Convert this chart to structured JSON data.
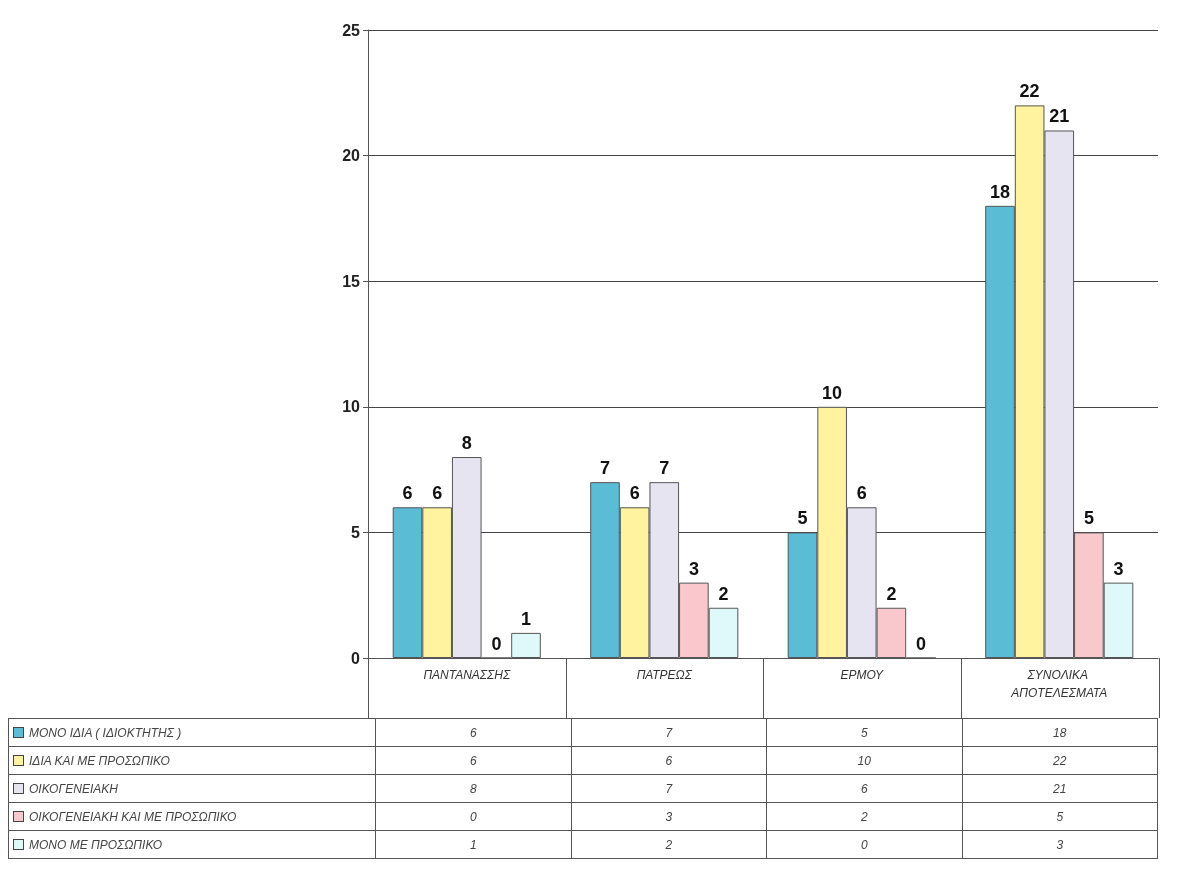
{
  "chart_data": {
    "type": "bar",
    "categories": [
      "ΠΑΝΤΑΝΑΣΣΗΣ",
      "ΠΑΤΡΕΩΣ",
      "ΕΡΜΟΥ",
      "ΣΥΝΟΛΙΚΑ ΑΠΟΤΕΛΕΣΜΑΤΑ"
    ],
    "series": [
      {
        "name": "ΜΟΝΟ ΙΔΙΑ ( ΙΔΙΟΚΤΗΤΗΣ )",
        "color": "#5bbcd6",
        "values": [
          6,
          7,
          5,
          18
        ],
        "value_labels": [
          "6",
          "7",
          "5",
          "18"
        ]
      },
      {
        "name": "ΙΔΙΑ ΚΑΙ ΜΕ ΠΡΟΣΩΠΙΚΟ",
        "color": "#fff3a0",
        "values": [
          6,
          6,
          10,
          22
        ],
        "value_labels": [
          "6",
          "6",
          "10",
          "22"
        ]
      },
      {
        "name": "ΟΙΚΟΓΕΝΕΙΑΚΗ",
        "color": "#e6e4f0",
        "values": [
          8,
          7,
          6,
          21
        ],
        "value_labels": [
          "8",
          "7",
          "6",
          "21"
        ]
      },
      {
        "name": "ΟΙΚΟΓΕΝΕΙΑΚΗ ΚΑΙ ΜΕ ΠΡΟΣΩΠΙΚΟ",
        "color": "#f9c8cc",
        "values": [
          0,
          3,
          2,
          5
        ],
        "value_labels": [
          "0",
          "3",
          "2",
          "5"
        ]
      },
      {
        "name": "ΜΟΝΟ ΜΕ ΠΡΟΣΩΠΙΚΟ",
        "color": "#dff8fa",
        "values": [
          1,
          2,
          0,
          3
        ],
        "value_labels": [
          "1",
          "2",
          "0",
          "3"
        ]
      }
    ],
    "ylim": [
      0,
      25
    ],
    "yticks": [
      0,
      5,
      10,
      15,
      20,
      25
    ],
    "grid": "y",
    "data_labels": true,
    "legend": "bottom left"
  }
}
